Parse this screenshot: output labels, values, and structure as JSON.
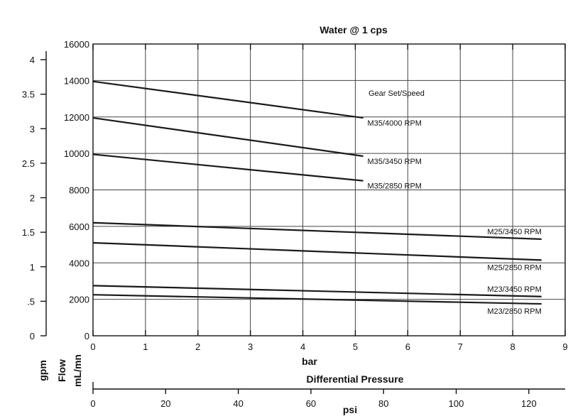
{
  "chart_data": {
    "type": "line",
    "title": "Water @ 1 cps",
    "x_axis": {
      "label": "bar",
      "range": [
        0,
        9
      ],
      "ticks": [
        0,
        1,
        2,
        3,
        4,
        5,
        6,
        7,
        8,
        9
      ]
    },
    "secondary_x_axis": {
      "title": "Differential Pressure",
      "label": "psi",
      "range": [
        0,
        130
      ],
      "ticks": [
        0,
        20,
        40,
        60,
        80,
        100,
        120
      ]
    },
    "y_axis": {
      "label": "Flow mL/mn",
      "label_line1": "Flow",
      "label_line2": "mL/mn",
      "range": [
        0,
        16000
      ],
      "ticks": [
        "0",
        "2000",
        "4000",
        "6000",
        "8000",
        "10000",
        "12000",
        "14000",
        "16000"
      ]
    },
    "secondary_y_axis": {
      "label": "gpm",
      "range": [
        0,
        4.2267
      ],
      "ticks": [
        {
          "value": 0,
          "label": "0"
        },
        {
          "value": 0.5,
          "label": ".5"
        },
        {
          "value": 1,
          "label": "1"
        },
        {
          "value": 1.5,
          "label": "1.5"
        },
        {
          "value": 2,
          "label": "2"
        },
        {
          "value": 2.5,
          "label": "2.5"
        },
        {
          "value": 3,
          "label": "3"
        },
        {
          "value": 3.5,
          "label": "3.5"
        },
        {
          "value": 4,
          "label": "4"
        }
      ]
    },
    "legend_title": "Gear Set/Speed",
    "grid": true,
    "series": [
      {
        "name": "M35/4000 RPM",
        "x": [
          0,
          5.15
        ],
        "y": [
          13950,
          11950
        ]
      },
      {
        "name": "M35/3450 RPM",
        "x": [
          0,
          5.15
        ],
        "y": [
          11950,
          9850
        ]
      },
      {
        "name": "M35/2850 RPM",
        "x": [
          0,
          5.15
        ],
        "y": [
          9950,
          8500
        ]
      },
      {
        "name": "M25/3450 RPM",
        "x": [
          0,
          8.55
        ],
        "y": [
          6200,
          5300
        ]
      },
      {
        "name": "M25/2850 RPM",
        "x": [
          0,
          8.55
        ],
        "y": [
          5100,
          4150
        ]
      },
      {
        "name": "M23/3450 RPM",
        "x": [
          0,
          8.55
        ],
        "y": [
          2750,
          2150
        ]
      },
      {
        "name": "M23/2850 RPM",
        "x": [
          0,
          8.55
        ],
        "y": [
          2250,
          1750
        ]
      }
    ]
  }
}
